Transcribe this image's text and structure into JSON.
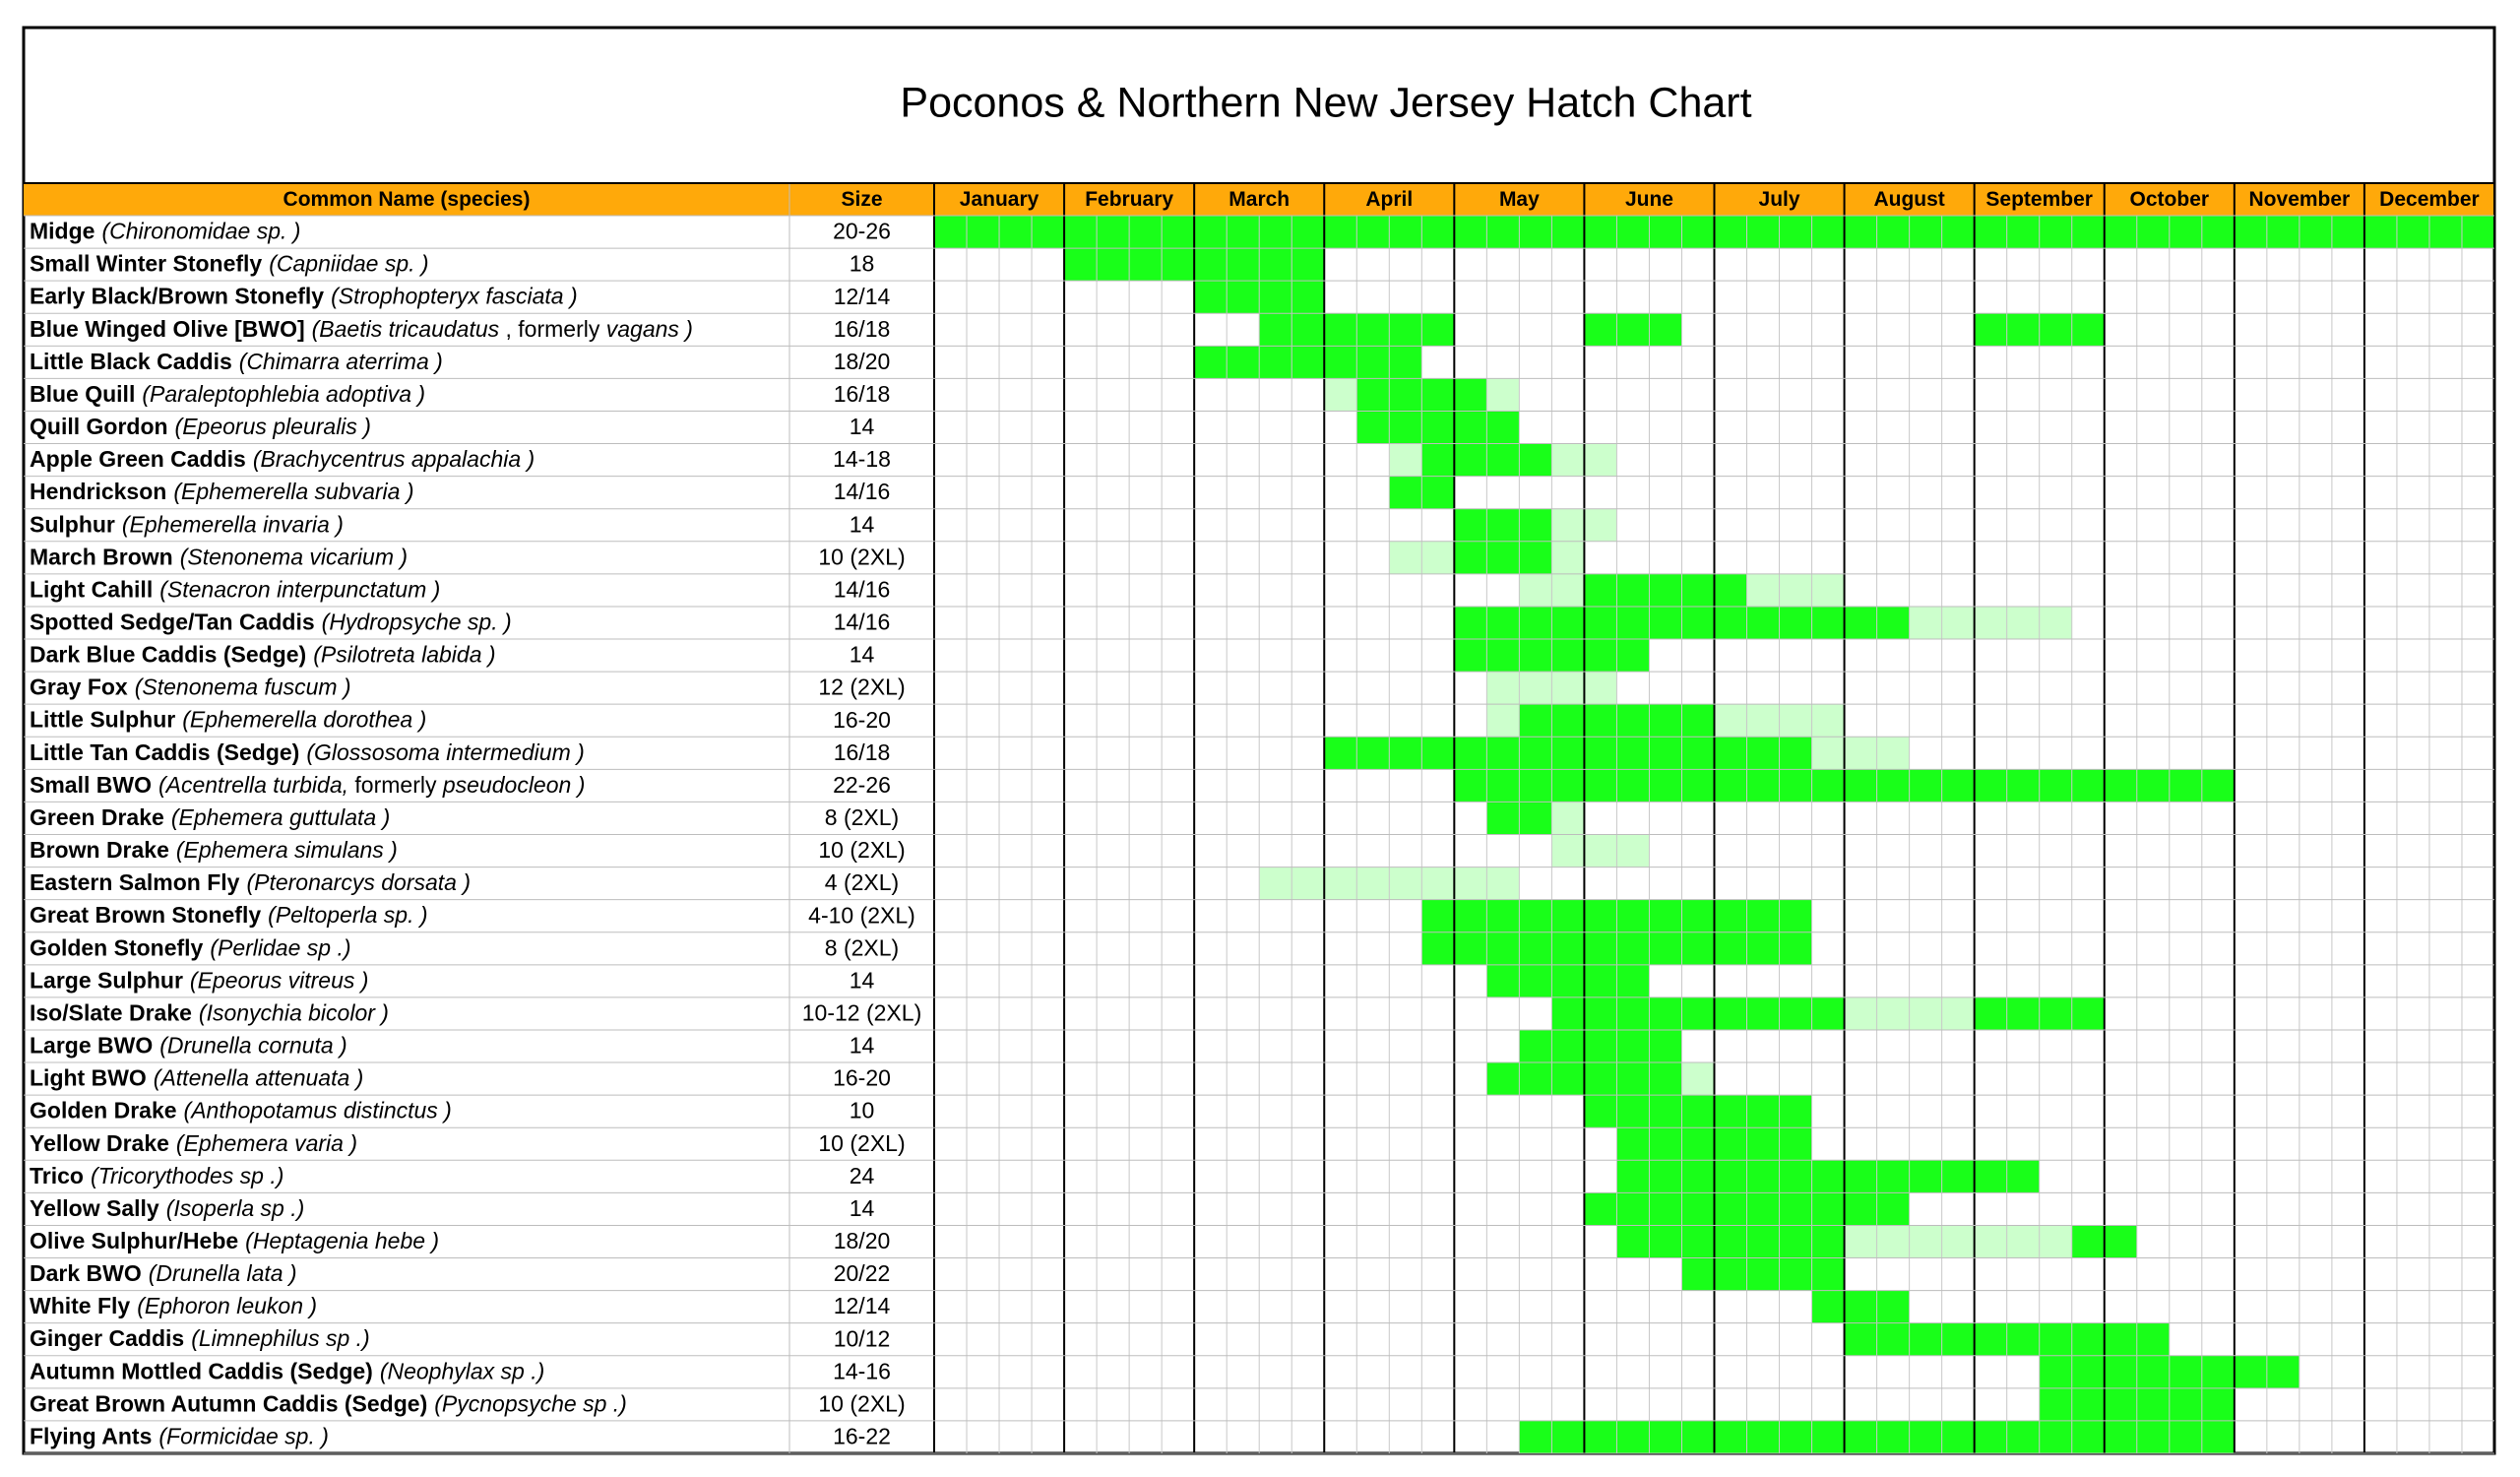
{
  "title": "Poconos & Northern New Jersey Hatch Chart",
  "header": {
    "name": "Common Name (species)",
    "size": "Size",
    "months": [
      "January",
      "February",
      "March",
      "April",
      "May",
      "June",
      "July",
      "August",
      "September",
      "October",
      "November",
      "December"
    ]
  },
  "colors": {
    "header": "#ffa90a",
    "level_1": "#ccffcc",
    "level_2": "#19ff19"
  },
  "rows": [
    {
      "name": "Midge",
      "species": [
        "(Chironomidae sp. )"
      ],
      "size": "20-26",
      "spans": [
        [
          0,
          47,
          2
        ]
      ]
    },
    {
      "name": "Small Winter Stonefly",
      "species": [
        "(Capniidae sp. )"
      ],
      "size": "18",
      "spans": [
        [
          4,
          11,
          2
        ]
      ]
    },
    {
      "name": "Early Black/Brown Stonefly",
      "species": [
        "(Strophopteryx  fasciata )"
      ],
      "size": "12/14",
      "spans": [
        [
          8,
          11,
          2
        ]
      ]
    },
    {
      "name": "Blue Winged Olive [BWO]",
      "species": [
        "(Baetis tricaudatus",
        " , formerly ",
        "vagans )"
      ],
      "size": "16/18",
      "spans": [
        [
          10,
          15,
          2
        ],
        [
          20,
          22,
          2
        ],
        [
          32,
          35,
          2
        ]
      ]
    },
    {
      "name": "Little Black Caddis",
      "species": [
        "(Chimarra aterrima )"
      ],
      "size": "18/20",
      "spans": [
        [
          8,
          14,
          2
        ]
      ]
    },
    {
      "name": "Blue Quill",
      "species": [
        "(Paraleptophlebia adoptiva )"
      ],
      "size": "16/18",
      "spans": [
        [
          12,
          12,
          1
        ],
        [
          13,
          16,
          2
        ],
        [
          17,
          17,
          1
        ]
      ]
    },
    {
      "name": "Quill Gordon",
      "species": [
        "(Epeorus pleuralis )"
      ],
      "size": "14",
      "spans": [
        [
          13,
          17,
          2
        ]
      ]
    },
    {
      "name": "Apple Green Caddis",
      "species": [
        "(Brachycentrus appalachia )"
      ],
      "size": "14-18",
      "spans": [
        [
          14,
          14,
          1
        ],
        [
          15,
          18,
          2
        ],
        [
          19,
          20,
          1
        ]
      ]
    },
    {
      "name": "Hendrickson",
      "species": [
        "(Ephemerella  subvaria )"
      ],
      "size": "14/16",
      "spans": [
        [
          14,
          15,
          2
        ]
      ]
    },
    {
      "name": "Sulphur",
      "species": [
        "(Ephemerella invaria )"
      ],
      "size": "14",
      "spans": [
        [
          16,
          18,
          2
        ],
        [
          19,
          20,
          1
        ]
      ]
    },
    {
      "name": "March Brown",
      "species": [
        "(Stenonema vicarium )"
      ],
      "size": "10 (2XL)",
      "spans": [
        [
          14,
          15,
          1
        ],
        [
          16,
          18,
          2
        ],
        [
          19,
          19,
          1
        ]
      ]
    },
    {
      "name": "Light Cahill",
      "species": [
        "(Stenacron interpunctatum )"
      ],
      "size": "14/16",
      "spans": [
        [
          18,
          19,
          1
        ],
        [
          20,
          24,
          2
        ],
        [
          25,
          27,
          1
        ]
      ]
    },
    {
      "name": "Spotted Sedge/Tan Caddis",
      "species": [
        "(Hydropsyche sp. )"
      ],
      "size": "14/16",
      "spans": [
        [
          16,
          29,
          2
        ],
        [
          30,
          34,
          1
        ]
      ]
    },
    {
      "name": "Dark Blue Caddis (Sedge)",
      "species": [
        "(Psilotreta labida )"
      ],
      "size": "14",
      "spans": [
        [
          16,
          21,
          2
        ]
      ]
    },
    {
      "name": "Gray Fox",
      "species": [
        "(Stenonema fuscum )"
      ],
      "size": "12 (2XL)",
      "spans": [
        [
          17,
          20,
          1
        ]
      ]
    },
    {
      "name": "Little Sulphur",
      "species": [
        "(Ephemerella  dorothea )"
      ],
      "size": "16-20",
      "spans": [
        [
          17,
          17,
          1
        ],
        [
          18,
          23,
          2
        ],
        [
          24,
          27,
          1
        ]
      ]
    },
    {
      "name": "Little Tan Caddis (Sedge)",
      "species": [
        "(Glossosoma intermedium )"
      ],
      "size": "16/18",
      "spans": [
        [
          12,
          26,
          2
        ],
        [
          27,
          29,
          1
        ]
      ]
    },
    {
      "name": "Small BWO",
      "species": [
        "(Acentrella turbida,",
        " formerly ",
        "pseudocleon )"
      ],
      "size": "22-26",
      "spans": [
        [
          16,
          39,
          2
        ]
      ]
    },
    {
      "name": "Green Drake",
      "species": [
        "(Ephemera  guttulata )"
      ],
      "size": "8 (2XL)",
      "spans": [
        [
          17,
          18,
          2
        ],
        [
          19,
          19,
          1
        ]
      ]
    },
    {
      "name": "Brown Drake",
      "species": [
        "(Ephemera  simulans )"
      ],
      "size": "10 (2XL)",
      "spans": [
        [
          19,
          21,
          1
        ]
      ]
    },
    {
      "name": "Eastern Salmon Fly",
      "species": [
        "(Pteronarcys  dorsata )"
      ],
      "size": "4 (2XL)",
      "spans": [
        [
          10,
          17,
          1
        ]
      ]
    },
    {
      "name": "Great Brown Stonefly",
      "species": [
        "(Peltoperla sp. )"
      ],
      "size": "4-10 (2XL)",
      "spans": [
        [
          15,
          26,
          2
        ]
      ]
    },
    {
      "name": "Golden Stonefly",
      "species": [
        "(Perlidae  sp .)"
      ],
      "size": "8 (2XL)",
      "spans": [
        [
          15,
          26,
          2
        ]
      ]
    },
    {
      "name": "Large Sulphur",
      "species": [
        "(Epeorus  vitreus )"
      ],
      "size": "14",
      "spans": [
        [
          17,
          21,
          2
        ]
      ]
    },
    {
      "name": "Iso/Slate Drake",
      "species": [
        "(Isonychia  bicolor )"
      ],
      "size": "10-12 (2XL)",
      "spans": [
        [
          19,
          27,
          2
        ],
        [
          28,
          31,
          1
        ],
        [
          32,
          35,
          2
        ]
      ]
    },
    {
      "name": "Large BWO",
      "species": [
        "(Drunella cornuta )"
      ],
      "size": "14",
      "spans": [
        [
          18,
          22,
          2
        ]
      ]
    },
    {
      "name": "Light BWO",
      "species": [
        "(Attenella  attenuata )"
      ],
      "size": "16-20",
      "spans": [
        [
          17,
          22,
          2
        ],
        [
          23,
          23,
          1
        ]
      ]
    },
    {
      "name": "Golden Drake",
      "species": [
        "(Anthopotamus  distinctus )"
      ],
      "size": "10",
      "spans": [
        [
          20,
          26,
          2
        ]
      ]
    },
    {
      "name": "Yellow Drake",
      "species": [
        "(Ephemera  varia )"
      ],
      "size": "10 (2XL)",
      "spans": [
        [
          21,
          26,
          2
        ]
      ]
    },
    {
      "name": "Trico",
      "species": [
        "(Tricorythodes  sp .)"
      ],
      "size": "24",
      "spans": [
        [
          21,
          33,
          2
        ]
      ]
    },
    {
      "name": "Yellow Sally",
      "species": [
        "(Isoperla  sp .)"
      ],
      "size": "14",
      "spans": [
        [
          20,
          29,
          2
        ]
      ]
    },
    {
      "name": "Olive Sulphur/Hebe",
      "species": [
        "(Heptagenia  hebe )"
      ],
      "size": "18/20",
      "spans": [
        [
          21,
          27,
          2
        ],
        [
          28,
          34,
          1
        ],
        [
          35,
          36,
          2
        ]
      ]
    },
    {
      "name": "Dark BWO",
      "species": [
        "(Drunella lata )"
      ],
      "size": "20/22",
      "spans": [
        [
          23,
          27,
          2
        ]
      ]
    },
    {
      "name": "White Fly",
      "species": [
        "(Ephoron  leukon )"
      ],
      "size": "12/14",
      "spans": [
        [
          27,
          29,
          2
        ]
      ]
    },
    {
      "name": "Ginger Caddis",
      "species": [
        "(Limnephilus  sp .)"
      ],
      "size": "10/12",
      "spans": [
        [
          28,
          37,
          2
        ]
      ]
    },
    {
      "name": "Autumn Mottled Caddis (Sedge)",
      "species": [
        "(Neophylax  sp .)"
      ],
      "size": "14-16",
      "spans": [
        [
          34,
          41,
          2
        ]
      ]
    },
    {
      "name": "Great Brown Autumn Caddis (Sedge)",
      "species": [
        "(Pycnopsyche  sp .)"
      ],
      "size": "10 (2XL)",
      "spans": [
        [
          34,
          39,
          2
        ]
      ]
    },
    {
      "name": "Flying Ants",
      "species": [
        "(Formicidae sp. )"
      ],
      "size": "16-22",
      "spans": [
        [
          18,
          39,
          2
        ]
      ]
    }
  ]
}
